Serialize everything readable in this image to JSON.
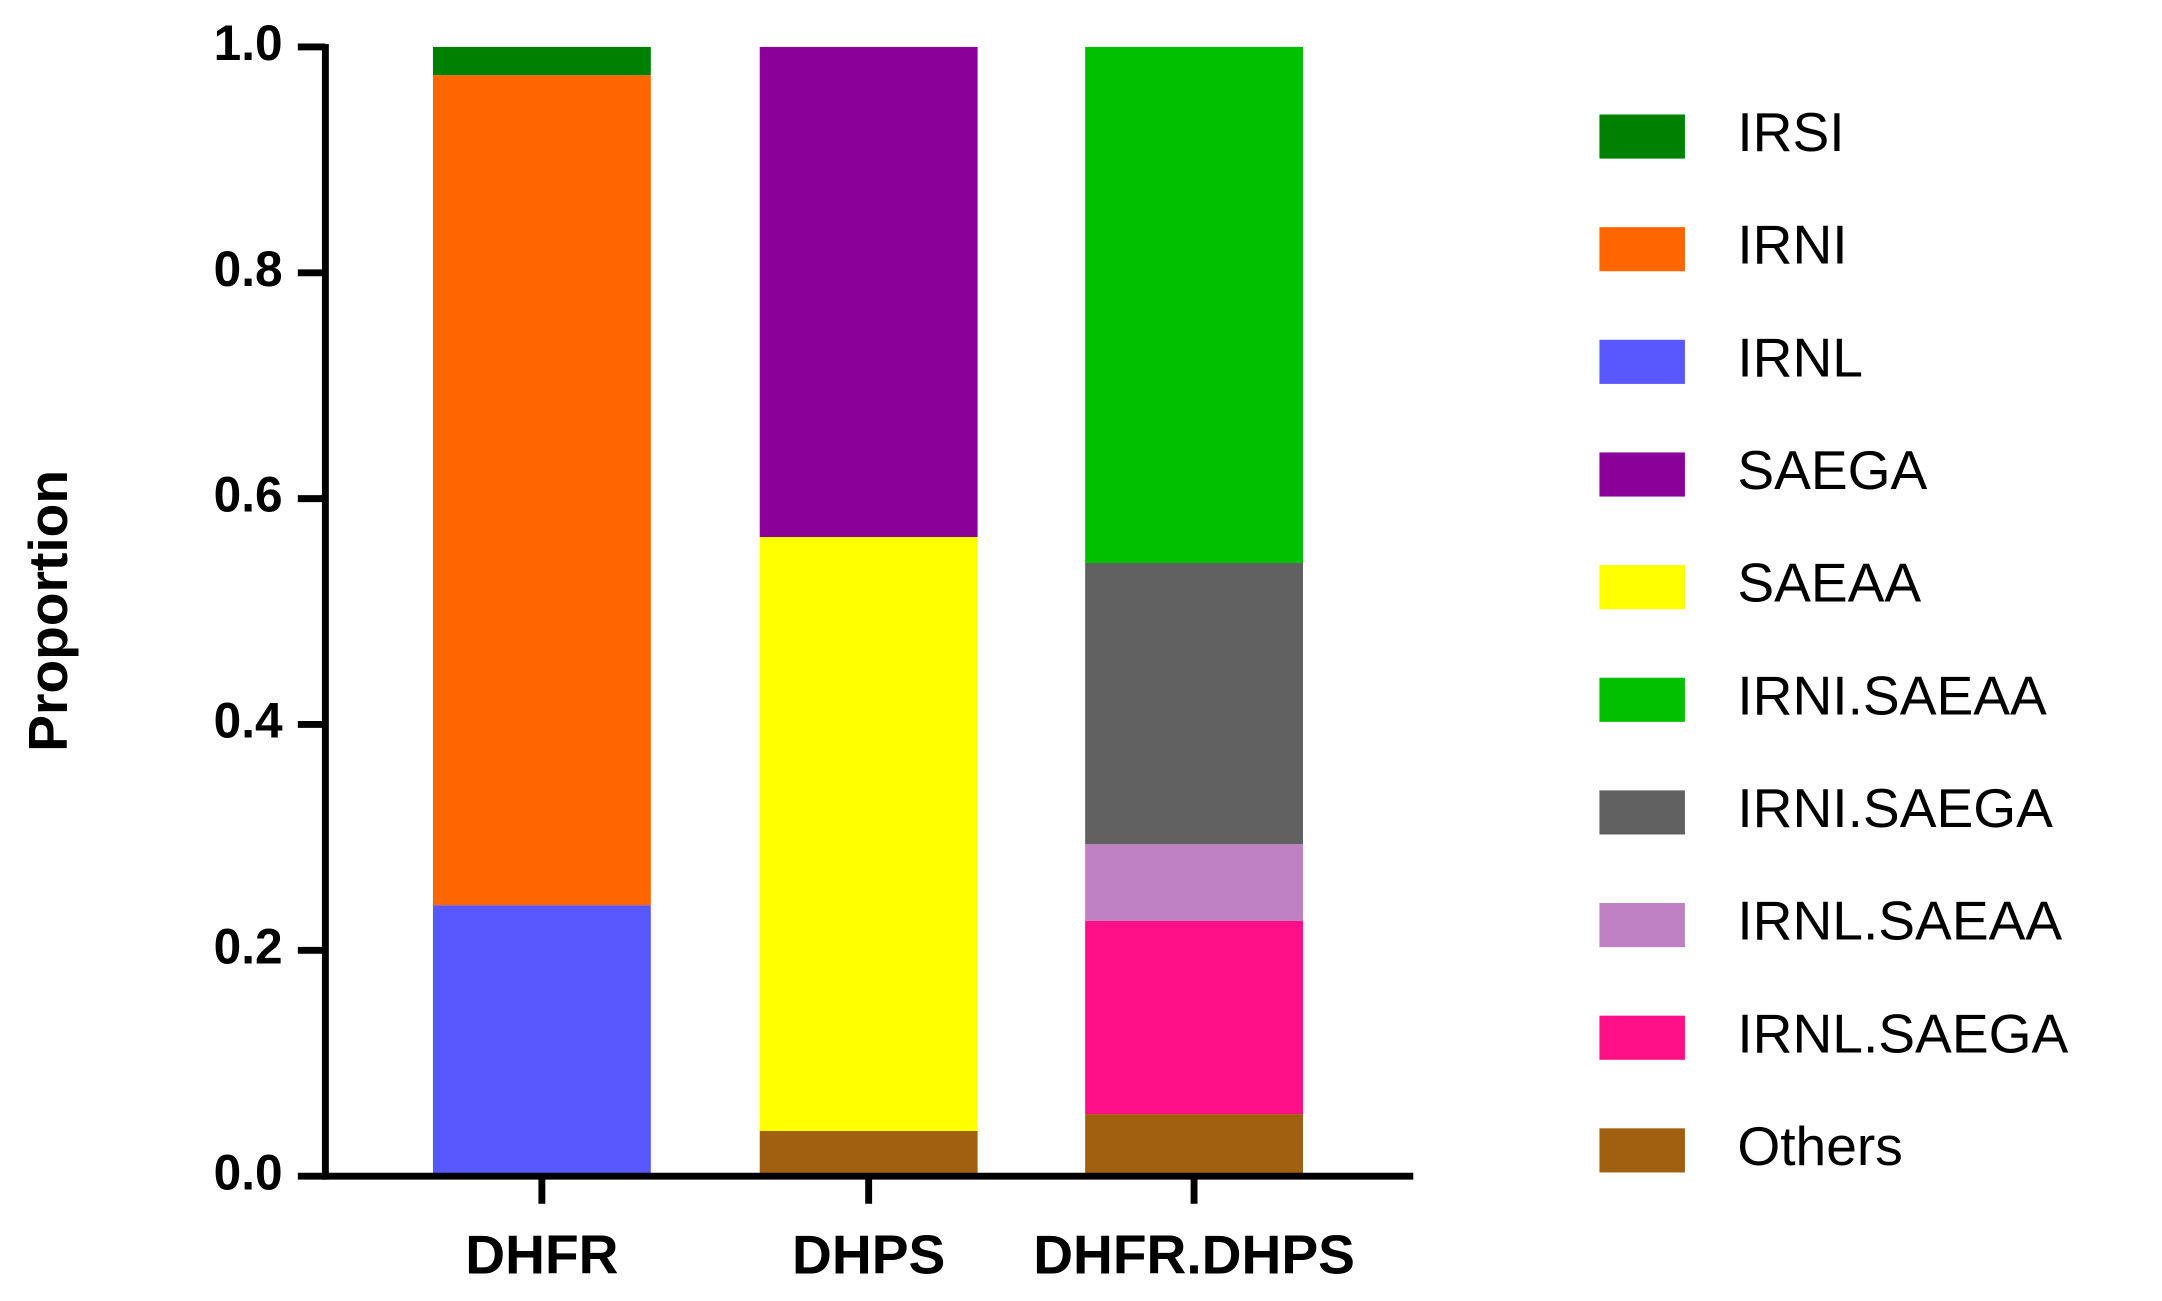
{
  "chart_data": {
    "type": "stacked_bar",
    "y_label": "Proportion",
    "categories": [
      "DHFR",
      "DHPS",
      "DHFR.DHPS"
    ],
    "ylim": [
      0,
      1
    ],
    "yticks": [
      {
        "value": 0,
        "label": "0.0"
      },
      {
        "value": 0.2,
        "label": "0.2"
      },
      {
        "value": 0.4,
        "label": "0.4"
      },
      {
        "value": 0.6,
        "label": "0.6"
      },
      {
        "value": 0.8,
        "label": "0.8"
      },
      {
        "value": 1,
        "label": "1.0"
      }
    ],
    "series": [
      {
        "name": "IRSI",
        "color": "#008000",
        "values": [
          0.025,
          0,
          0
        ]
      },
      {
        "name": "IRNI",
        "color": "#ff6600",
        "values": [
          0.735,
          0,
          0
        ]
      },
      {
        "name": "IRNL",
        "color": "#5858ff",
        "values": [
          0.24,
          0,
          0
        ]
      },
      {
        "name": "SAEGA",
        "color": "#8b0099",
        "values": [
          0,
          0.434,
          0
        ]
      },
      {
        "name": "SAEAA",
        "color": "#ffff00",
        "values": [
          0,
          0.526,
          0
        ]
      },
      {
        "name": "IRNI.SAEAA",
        "color": "#00c000",
        "values": [
          0,
          0,
          0.457
        ]
      },
      {
        "name": "IRNI.SAEGA",
        "color": "#616161",
        "values": [
          0,
          0,
          0.249
        ]
      },
      {
        "name": "IRNL.SAEAA",
        "color": "#bf80c4",
        "values": [
          0,
          0,
          0.068
        ]
      },
      {
        "name": "IRNL.SAEGA",
        "color": "#ff1088",
        "values": [
          0,
          0,
          0.171
        ]
      },
      {
        "name": "Others",
        "color": "#a06010",
        "values": [
          0,
          0.04,
          0.055
        ]
      }
    ]
  }
}
